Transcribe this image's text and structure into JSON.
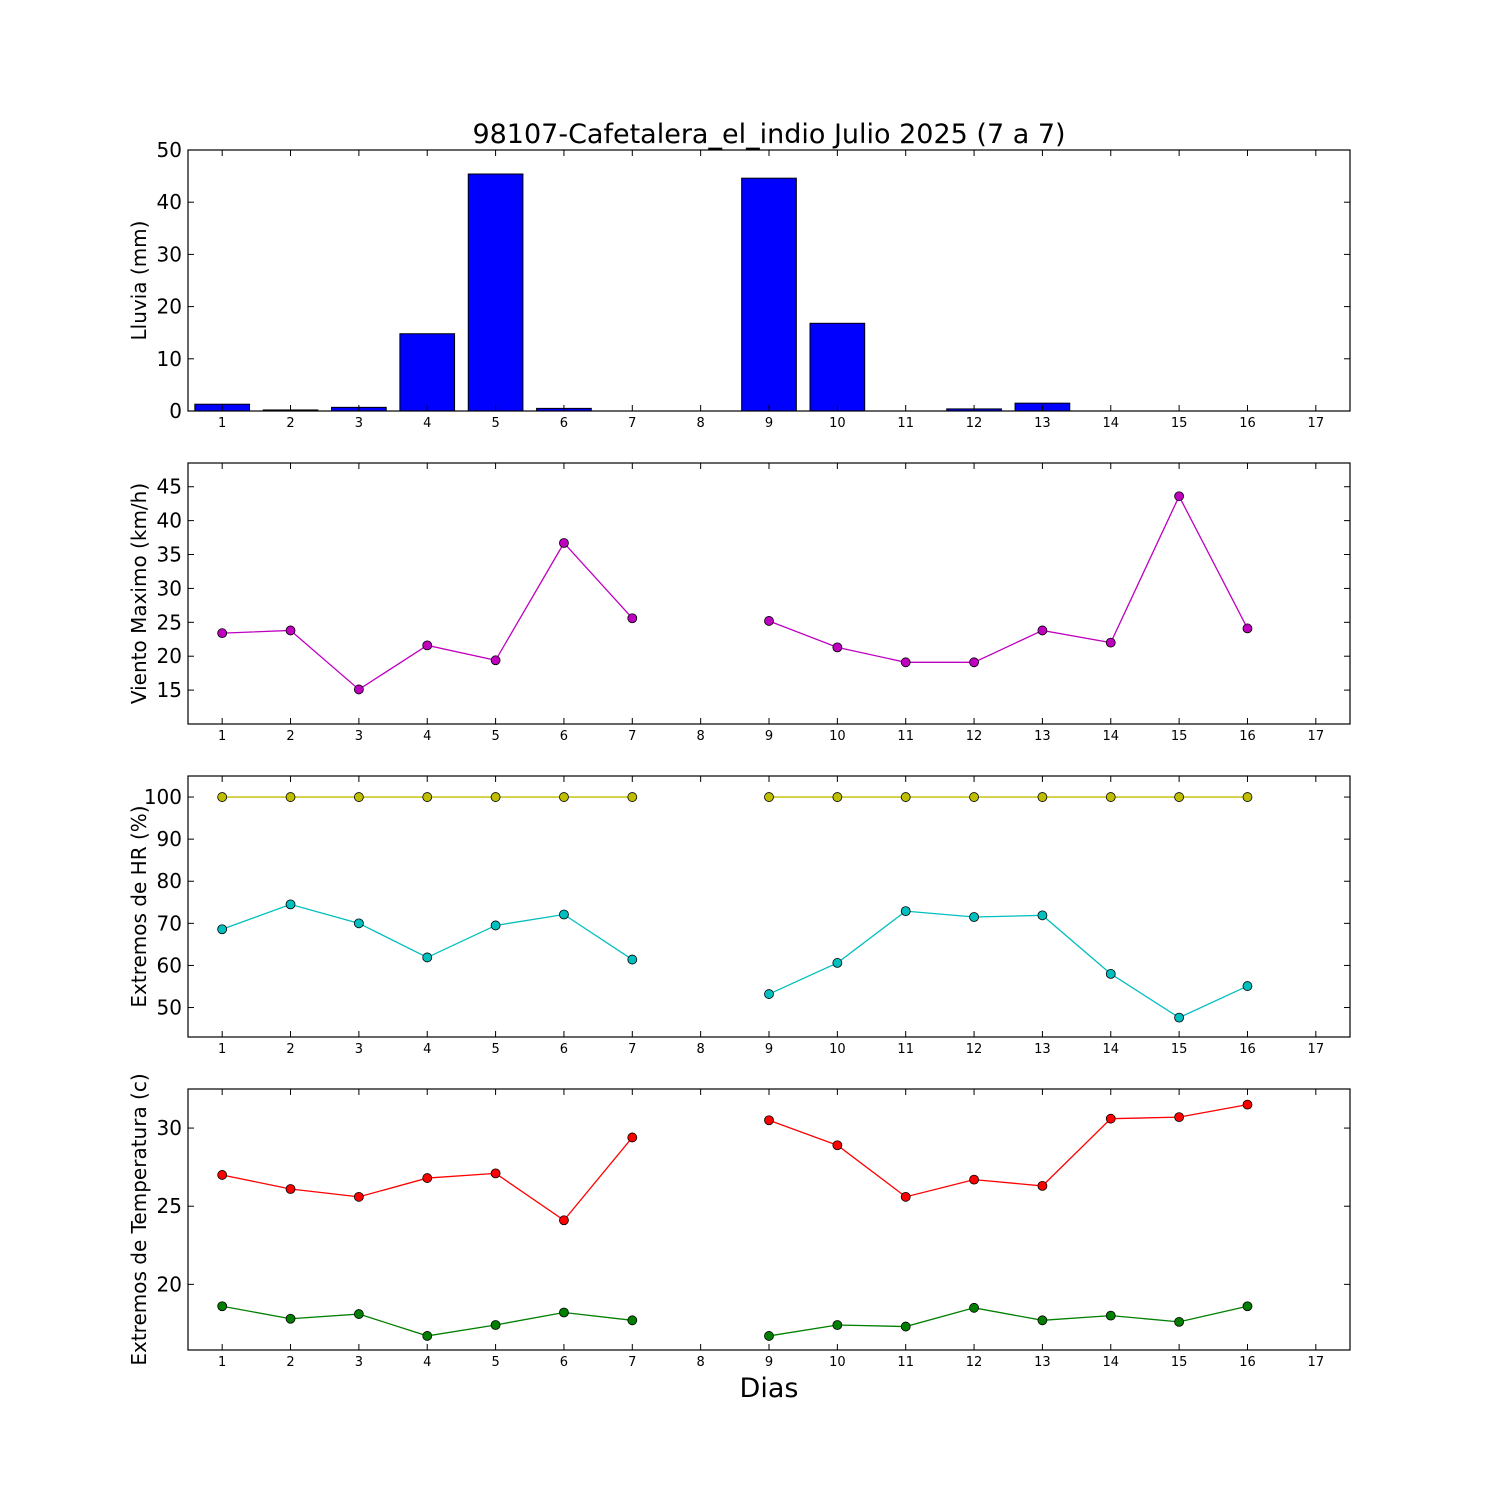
{
  "figure": {
    "title": "98107-Cafetalera_el_indio Julio 2025  (7 a 7)",
    "xlabel": "Dias"
  },
  "chart_data": [
    {
      "type": "bar",
      "ylabel": "Lluvia (mm)",
      "ylim": [
        0,
        50
      ],
      "yticks": [
        0,
        10,
        20,
        30,
        40,
        50
      ],
      "xlim": [
        0.5,
        17.5
      ],
      "xticks": [
        1,
        2,
        3,
        4,
        5,
        6,
        7,
        8,
        9,
        10,
        11,
        12,
        13,
        14,
        15,
        16,
        17
      ],
      "categories": [
        1,
        2,
        3,
        4,
        5,
        6,
        7,
        8,
        9,
        10,
        11,
        12,
        13,
        14,
        15,
        16
      ],
      "series": [
        {
          "color": "#0000ff",
          "values": [
            1.3,
            0.2,
            0.7,
            14.8,
            45.4,
            0.5,
            0.0,
            null,
            44.6,
            16.8,
            0.0,
            0.4,
            1.5,
            0.0,
            0.0,
            0.0
          ]
        }
      ]
    },
    {
      "type": "line",
      "ylabel": "Viento Maximo (km/h)",
      "ylim": [
        10,
        48.5
      ],
      "yticks": [
        15,
        20,
        25,
        30,
        35,
        40,
        45
      ],
      "xlim": [
        0.5,
        17.5
      ],
      "xticks": [
        1,
        2,
        3,
        4,
        5,
        6,
        7,
        8,
        9,
        10,
        11,
        12,
        13,
        14,
        15,
        16,
        17
      ],
      "x": [
        1,
        2,
        3,
        4,
        5,
        6,
        7,
        8,
        9,
        10,
        11,
        12,
        13,
        14,
        15,
        16
      ],
      "series": [
        {
          "color": "#bf00bf",
          "values": [
            23.4,
            23.8,
            15.1,
            21.6,
            19.4,
            36.7,
            25.6,
            null,
            25.2,
            21.3,
            19.1,
            19.1,
            23.8,
            22.0,
            43.6,
            24.1
          ]
        }
      ]
    },
    {
      "type": "line",
      "ylabel": "Extremos de HR (%)",
      "ylim": [
        43,
        105
      ],
      "yticks": [
        50,
        60,
        70,
        80,
        90,
        100
      ],
      "xlim": [
        0.5,
        17.5
      ],
      "xticks": [
        1,
        2,
        3,
        4,
        5,
        6,
        7,
        8,
        9,
        10,
        11,
        12,
        13,
        14,
        15,
        16,
        17
      ],
      "x": [
        1,
        2,
        3,
        4,
        5,
        6,
        7,
        8,
        9,
        10,
        11,
        12,
        13,
        14,
        15,
        16
      ],
      "series": [
        {
          "color": "#bfbf00",
          "values": [
            100,
            100,
            100,
            100,
            100,
            100,
            100,
            null,
            100,
            100,
            100,
            100,
            100,
            100,
            100,
            100
          ]
        },
        {
          "color": "#00bfbf",
          "values": [
            68.6,
            74.5,
            70.0,
            61.9,
            69.5,
            72.1,
            61.4,
            null,
            53.2,
            60.6,
            72.9,
            71.5,
            71.9,
            58.0,
            47.6,
            55.1
          ]
        }
      ]
    },
    {
      "type": "line",
      "ylabel": "Extremos de Temperatura (c)",
      "ylim": [
        15.8,
        32.5
      ],
      "yticks": [
        20,
        25,
        30
      ],
      "xlim": [
        0.5,
        17.5
      ],
      "xticks": [
        1,
        2,
        3,
        4,
        5,
        6,
        7,
        8,
        9,
        10,
        11,
        12,
        13,
        14,
        15,
        16,
        17
      ],
      "x": [
        1,
        2,
        3,
        4,
        5,
        6,
        7,
        8,
        9,
        10,
        11,
        12,
        13,
        14,
        15,
        16
      ],
      "series": [
        {
          "color": "#ff0000",
          "values": [
            27.0,
            26.1,
            25.6,
            26.8,
            27.1,
            24.1,
            29.4,
            null,
            30.5,
            28.9,
            25.6,
            26.7,
            26.3,
            30.6,
            30.7,
            31.5
          ]
        },
        {
          "color": "#007f00",
          "values": [
            18.6,
            17.8,
            18.1,
            16.7,
            17.4,
            18.2,
            17.7,
            null,
            16.7,
            17.4,
            17.3,
            18.5,
            17.7,
            18.0,
            17.6,
            18.6
          ]
        }
      ]
    }
  ]
}
